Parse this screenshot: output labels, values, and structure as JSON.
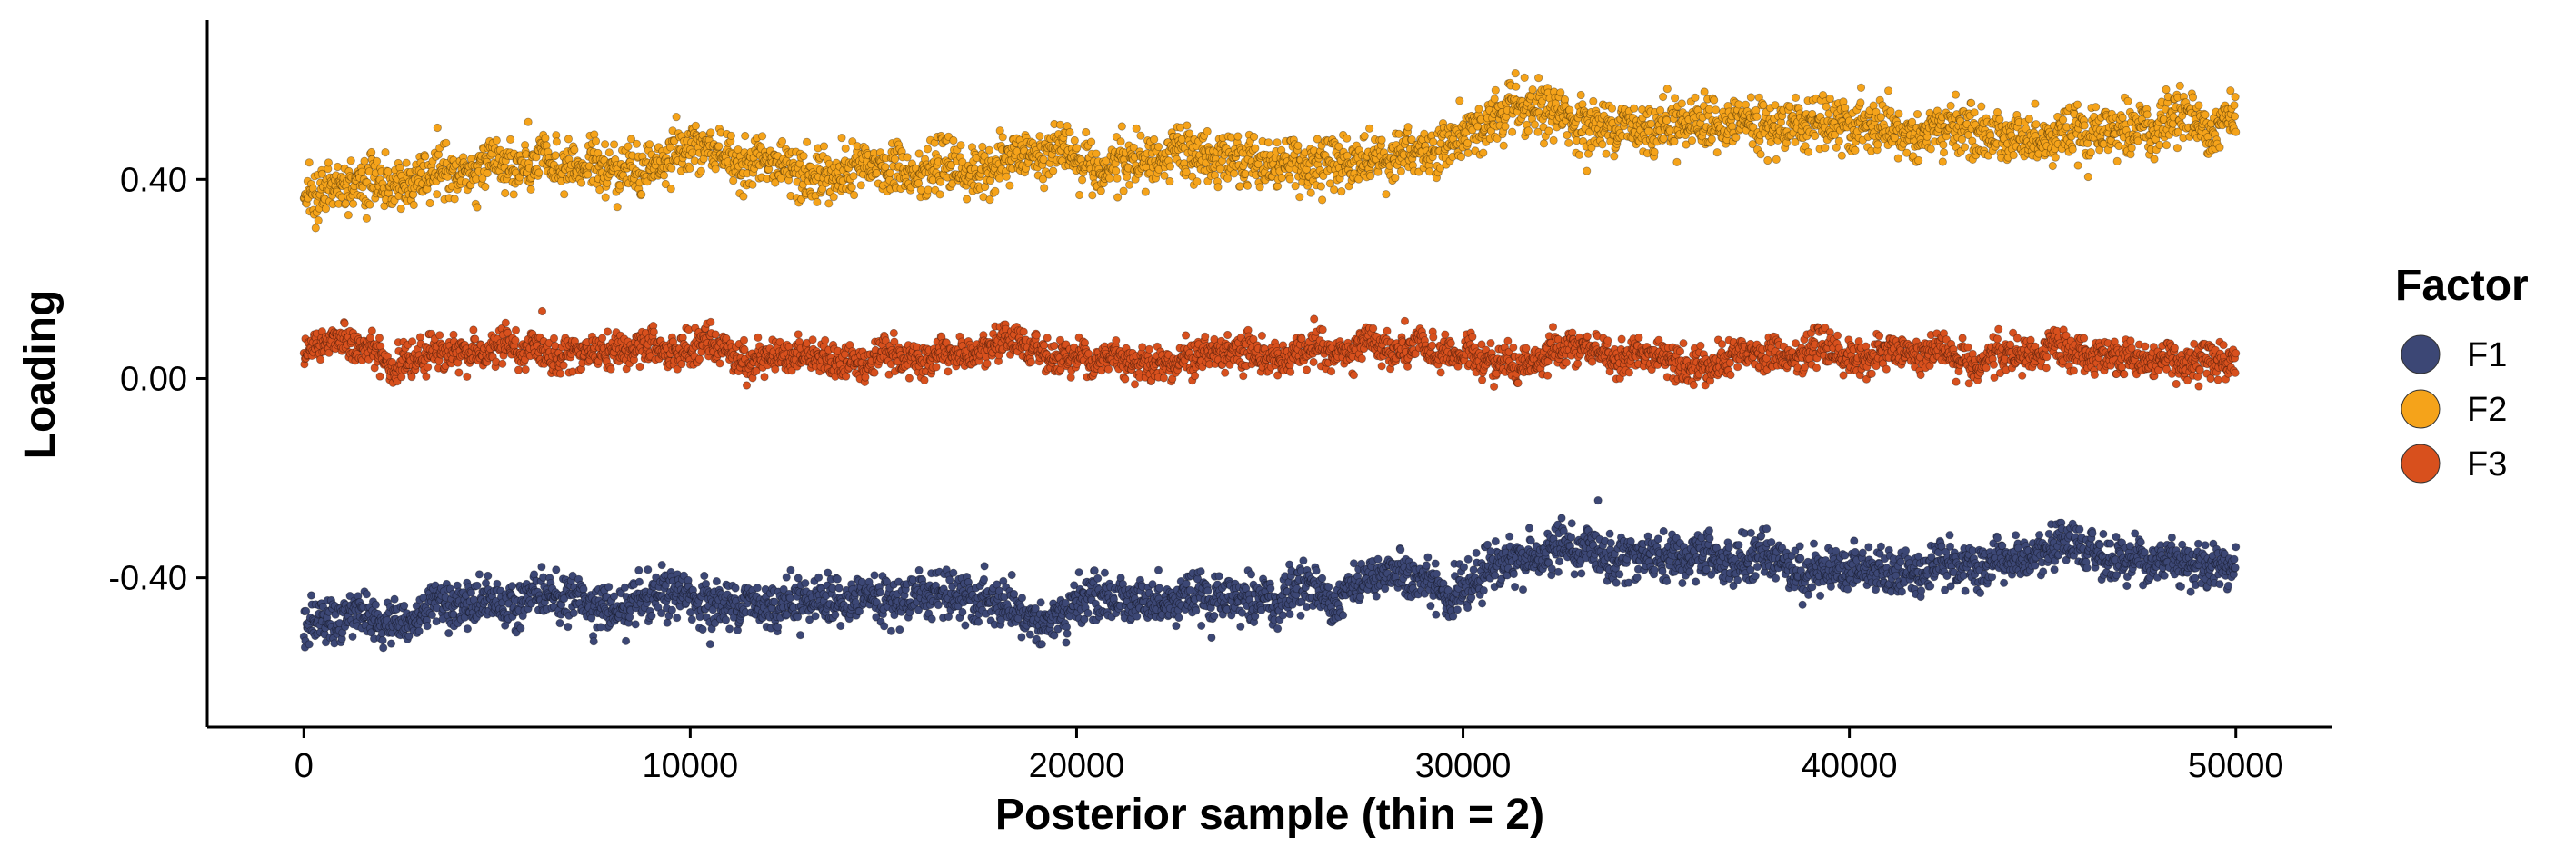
{
  "chart_data": {
    "type": "scatter",
    "title": "",
    "xlabel": "Posterior sample (thin = 2)",
    "ylabel": "Loading",
    "xlim": [
      -2500,
      52500
    ],
    "ylim": [
      -0.7,
      0.72
    ],
    "x_ticks": [
      0,
      10000,
      20000,
      30000,
      40000,
      50000
    ],
    "x_tick_labels": [
      "0",
      "10000",
      "20000",
      "30000",
      "40000",
      "50000"
    ],
    "y_ticks": [
      -0.4,
      0.0,
      0.4
    ],
    "y_tick_labels": [
      "-0.40",
      "0.00",
      "0.40"
    ],
    "grid": false,
    "legend": {
      "title": "Factor",
      "position": "right"
    },
    "series": [
      {
        "name": "F1",
        "color": "#3c4775",
        "trace_mean": [
          [
            0,
            -0.5
          ],
          [
            2000,
            -0.47
          ],
          [
            5000,
            -0.46
          ],
          [
            8000,
            -0.45
          ],
          [
            10000,
            -0.45
          ],
          [
            13000,
            -0.44
          ],
          [
            16000,
            -0.43
          ],
          [
            18000,
            -0.46
          ],
          [
            19500,
            -0.49
          ],
          [
            20500,
            -0.44
          ],
          [
            23000,
            -0.43
          ],
          [
            25000,
            -0.44
          ],
          [
            28000,
            -0.42
          ],
          [
            30000,
            -0.41
          ],
          [
            31000,
            -0.37
          ],
          [
            33000,
            -0.35
          ],
          [
            36000,
            -0.37
          ],
          [
            40000,
            -0.38
          ],
          [
            43000,
            -0.37
          ],
          [
            46000,
            -0.36
          ],
          [
            50000,
            -0.36
          ]
        ],
        "spread": 0.04
      },
      {
        "name": "F2",
        "color": "#f5a31a",
        "trace_mean": [
          [
            0,
            0.37
          ],
          [
            2000,
            0.39
          ],
          [
            5000,
            0.41
          ],
          [
            8000,
            0.43
          ],
          [
            10000,
            0.45
          ],
          [
            12000,
            0.43
          ],
          [
            15000,
            0.42
          ],
          [
            17000,
            0.41
          ],
          [
            18000,
            0.43
          ],
          [
            19500,
            0.45
          ],
          [
            21000,
            0.43
          ],
          [
            23000,
            0.44
          ],
          [
            26000,
            0.44
          ],
          [
            28000,
            0.45
          ],
          [
            30000,
            0.47
          ],
          [
            31000,
            0.52
          ],
          [
            33000,
            0.51
          ],
          [
            36000,
            0.52
          ],
          [
            38000,
            0.52
          ],
          [
            40000,
            0.5
          ],
          [
            43000,
            0.49
          ],
          [
            46000,
            0.5
          ],
          [
            50000,
            0.52
          ]
        ],
        "spread": 0.045
      },
      {
        "name": "F3",
        "color": "#d8501d",
        "trace_mean": [
          [
            0,
            0.05
          ],
          [
            10000,
            0.05
          ],
          [
            20000,
            0.045
          ],
          [
            30000,
            0.045
          ],
          [
            40000,
            0.045
          ],
          [
            50000,
            0.045
          ]
        ],
        "spread": 0.03
      }
    ]
  }
}
